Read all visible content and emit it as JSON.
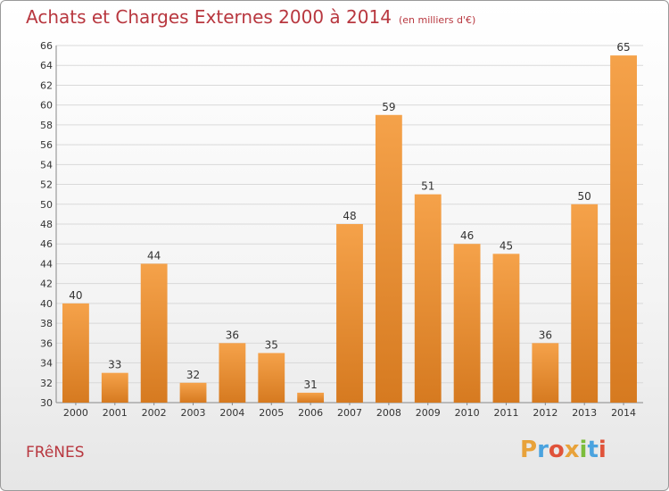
{
  "title": "Achats et Charges Externes 2000 à 2014",
  "subtitle": "(en milliers d'€)",
  "town": "FRêNES",
  "logo": {
    "text": "Proxiti",
    "letters": [
      {
        "ch": "P",
        "color": "#e8a23a"
      },
      {
        "ch": "r",
        "color": "#4aa3df"
      },
      {
        "ch": "o",
        "color": "#e0533a"
      },
      {
        "ch": "x",
        "color": "#e8a23a"
      },
      {
        "ch": "i",
        "color": "#7cbd3c"
      },
      {
        "ch": "t",
        "color": "#4aa3df"
      },
      {
        "ch": "i",
        "color": "#e0533a"
      }
    ]
  },
  "colors": {
    "title": "#b8373f",
    "bar_top": "#f5a24a",
    "bar_bottom": "#d67a20",
    "grid": "#d9d9d9"
  },
  "chart_data": {
    "type": "bar",
    "categories": [
      "2000",
      "2001",
      "2002",
      "2003",
      "2004",
      "2005",
      "2006",
      "2007",
      "2008",
      "2009",
      "2010",
      "2011",
      "2012",
      "2013",
      "2014"
    ],
    "values": [
      40,
      33,
      44,
      32,
      36,
      35,
      31,
      48,
      59,
      51,
      46,
      45,
      36,
      50,
      65
    ],
    "ylim": [
      30,
      66
    ],
    "yticks": [
      30,
      32,
      34,
      36,
      38,
      40,
      42,
      44,
      46,
      48,
      50,
      52,
      54,
      56,
      58,
      60,
      62,
      64,
      66
    ],
    "grid": true,
    "xlabel": "",
    "ylabel": ""
  }
}
